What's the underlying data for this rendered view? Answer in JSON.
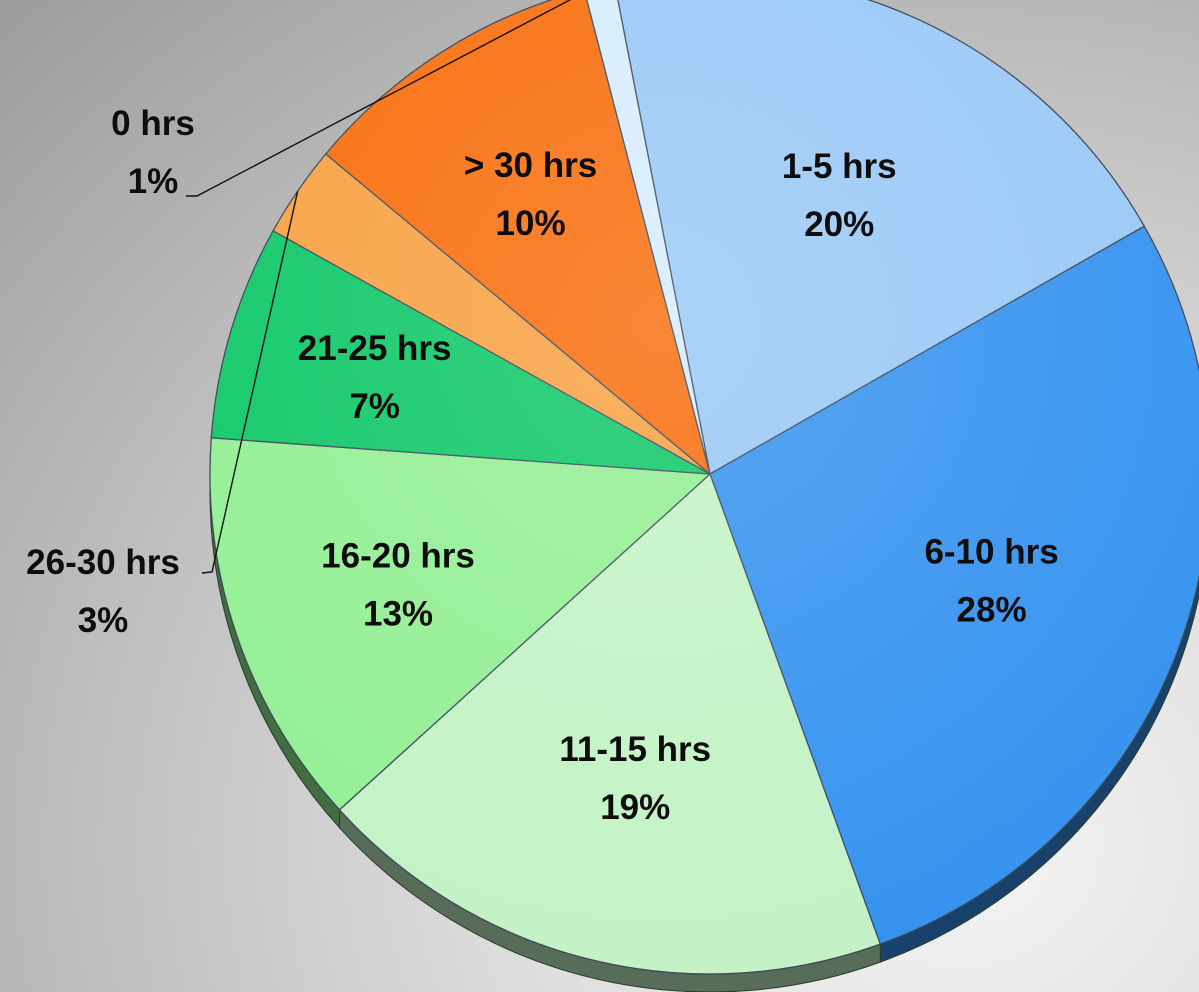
{
  "chart_data": {
    "type": "pie",
    "title": "",
    "slices": [
      {
        "label": "1-5 hrs",
        "percent_label": "20%",
        "value": 20,
        "color": "#99c8f6"
      },
      {
        "label": "6-10 hrs",
        "percent_label": "28%",
        "value": 28,
        "color": "#3592ef"
      },
      {
        "label": "11-15 hrs",
        "percent_label": "19%",
        "value": 19,
        "color": "#c3f2c5"
      },
      {
        "label": "16-20 hrs",
        "percent_label": "13%",
        "value": 13,
        "color": "#93ef93"
      },
      {
        "label": "21-25 hrs",
        "percent_label": "7%",
        "value": 7,
        "color": "#0dc766"
      },
      {
        "label": "26-30 hrs",
        "percent_label": "3%",
        "value": 3,
        "color": "#f7a040"
      },
      {
        "label": "> 30 hrs",
        "percent_label": "10%",
        "value": 10,
        "color": "#f86c0a"
      },
      {
        "label": "0 hrs",
        "percent_label": "1%",
        "value": 1,
        "color": "#d7ecfb"
      }
    ],
    "legend": "none",
    "style": "3d-tilted"
  }
}
